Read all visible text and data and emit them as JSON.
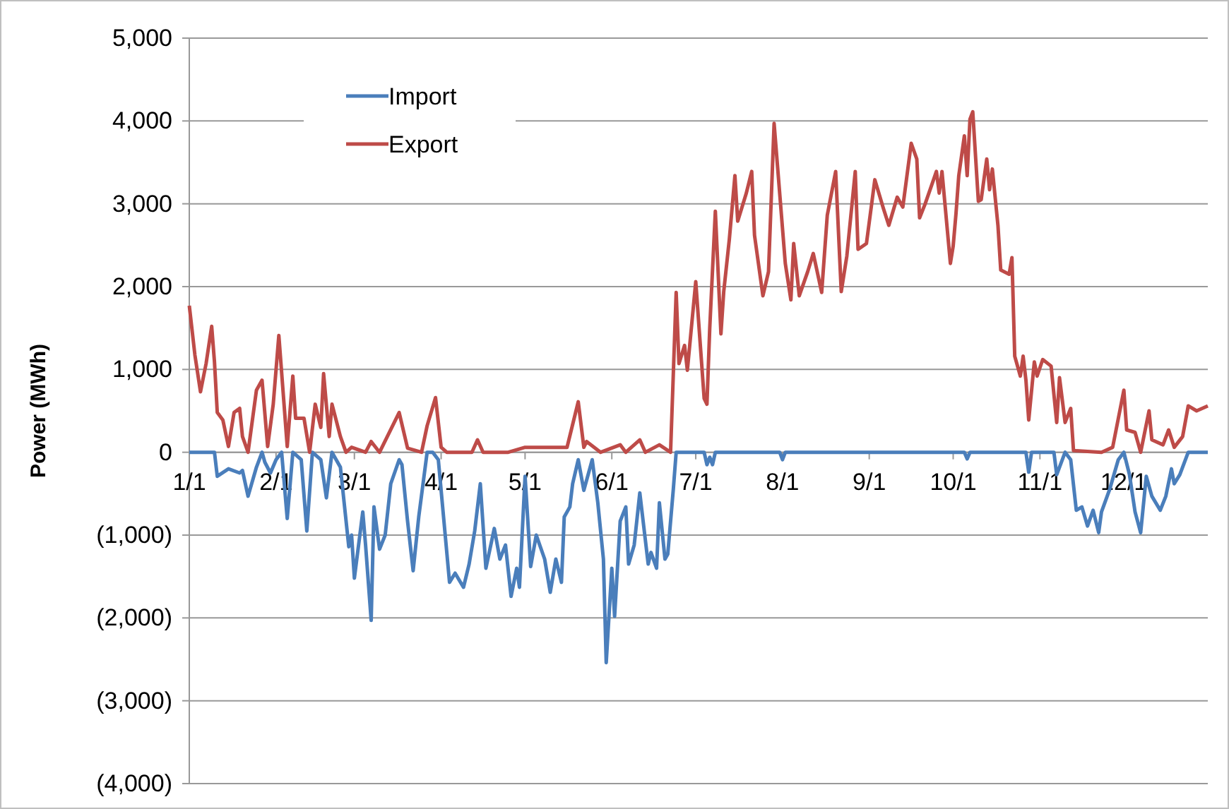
{
  "chart_data": {
    "type": "line",
    "ylabel": "Power (MWh)",
    "ylim": [
      -4000,
      5000
    ],
    "yticks": [
      {
        "value": -4000,
        "label": "(4,000)"
      },
      {
        "value": -3000,
        "label": "(3,000)"
      },
      {
        "value": -2000,
        "label": "(2,000)"
      },
      {
        "value": -1000,
        "label": "(1,000)"
      },
      0,
      {
        "value": 1000,
        "label": "1,000"
      },
      {
        "value": 2000,
        "label": "2,000"
      },
      {
        "value": 3000,
        "label": "3,000"
      },
      {
        "value": 4000,
        "label": "4,000"
      },
      {
        "value": 5000,
        "label": "5,000"
      }
    ],
    "xlim": [
      "--01-01",
      "--12-31"
    ],
    "xticks": [
      {
        "value": "--01-01",
        "label": "1/1"
      },
      {
        "value": "--02-01",
        "label": "2/1"
      },
      {
        "value": "--03-01",
        "label": "3/1"
      },
      {
        "value": "--04-01",
        "label": "4/1"
      },
      {
        "value": "--05-01",
        "label": "5/1"
      },
      {
        "value": "--06-01",
        "label": "6/1"
      },
      {
        "value": "--07-01",
        "label": "7/1"
      },
      {
        "value": "--08-01",
        "label": "8/1"
      },
      {
        "value": "--09-01",
        "label": "9/1"
      },
      {
        "value": "--10-01",
        "label": "10/1"
      },
      {
        "value": "--11-01",
        "label": "11/1"
      },
      {
        "value": "--12-01",
        "label": "12/1"
      }
    ],
    "grid": "y",
    "legend": "top left",
    "marker": "none",
    "line_style": "solid",
    "series": [
      {
        "name": "Import",
        "color": "#4a7ebb",
        "x": [
          "--01-01",
          "--01-10",
          "--01-11",
          "--01-15",
          "--01-19",
          "--01-20",
          "--01-22",
          "--01-25",
          "--01-27",
          "--01-28",
          "--01-30",
          "--02-01",
          "--02-03",
          "--02-05",
          "--02-07",
          "--02-10",
          "--02-12",
          "--02-14",
          "--02-17",
          "--02-19",
          "--02-21",
          "--02-24",
          "--02-27",
          "--02-28",
          "--03-01",
          "--03-04",
          "--03-05",
          "--03-07",
          "--03-08",
          "--03-10",
          "--03-12",
          "--03-14",
          "--03-17",
          "--03-18",
          "--03-20",
          "--03-22",
          "--03-24",
          "--03-27",
          "--03-29",
          "--03-31",
          "--04-02",
          "--04-04",
          "--04-06",
          "--04-09",
          "--04-11",
          "--04-13",
          "--04-15",
          "--04-17",
          "--04-20",
          "--04-22",
          "--04-24",
          "--04-26",
          "--04-28",
          "--04-29",
          "--05-01",
          "--05-03",
          "--05-05",
          "--05-08",
          "--05-10",
          "--05-12",
          "--05-14",
          "--05-15",
          "--05-17",
          "--05-18",
          "--05-20",
          "--05-22",
          "--05-25",
          "--05-27",
          "--05-29",
          "--05-30",
          "--06-01",
          "--06-02",
          "--06-04",
          "--06-06",
          "--06-07",
          "--06-09",
          "--06-11",
          "--06-14",
          "--06-15",
          "--06-17",
          "--06-18",
          "--06-20",
          "--06-21",
          "--06-23",
          "--06-24",
          "--07-04",
          "--07-05",
          "--07-06",
          "--07-07",
          "--07-08",
          "--07-31",
          "--08-01",
          "--08-02",
          "--10-05",
          "--10-06",
          "--10-07",
          "--10-27",
          "--10-28",
          "--10-29",
          "--11-06",
          "--11-07",
          "--11-10",
          "--11-12",
          "--11-14",
          "--11-16",
          "--11-18",
          "--11-20",
          "--11-22",
          "--11-23",
          "--11-26",
          "--11-29",
          "--12-01",
          "--12-03",
          "--12-05",
          "--12-07",
          "--12-09",
          "--12-11",
          "--12-14",
          "--12-16",
          "--12-18",
          "--12-19",
          "--12-21",
          "--12-24",
          "--12-31"
        ],
        "values": [
          0,
          0,
          -290,
          -200,
          -250,
          -220,
          -530,
          -180,
          0,
          -120,
          -250,
          -90,
          0,
          -800,
          0,
          -90,
          -950,
          0,
          -90,
          -550,
          0,
          -180,
          -1140,
          -1000,
          -1520,
          -720,
          -1120,
          -2030,
          -660,
          -1170,
          -1000,
          -380,
          -90,
          -150,
          -830,
          -1430,
          -780,
          0,
          0,
          -90,
          -830,
          -1570,
          -1460,
          -1630,
          -1350,
          -950,
          -380,
          -1400,
          -920,
          -1290,
          -1120,
          -1740,
          -1400,
          -1630,
          -290,
          -1380,
          -1000,
          -1290,
          -1690,
          -1290,
          -1570,
          -780,
          -660,
          -380,
          -90,
          -460,
          -90,
          -610,
          -1290,
          -2540,
          -1400,
          -1980,
          -830,
          -660,
          -1350,
          -1120,
          -490,
          -1350,
          -1210,
          -1400,
          -610,
          -1290,
          -1230,
          -440,
          0,
          0,
          -150,
          -60,
          -150,
          0,
          0,
          -90,
          0,
          0,
          -80,
          0,
          0,
          -240,
          0,
          0,
          -270,
          0,
          -90,
          -700,
          -660,
          -890,
          -700,
          -970,
          -720,
          -440,
          -90,
          0,
          -270,
          -720,
          -970,
          -290,
          -530,
          -700,
          -530,
          -200,
          -380,
          -270,
          0,
          0
        ]
      },
      {
        "name": "Export",
        "color": "#be4b48",
        "x": [
          "--01-01",
          "--01-03",
          "--01-05",
          "--01-07",
          "--01-09",
          "--01-10",
          "--01-11",
          "--01-13",
          "--01-15",
          "--01-17",
          "--01-19",
          "--01-20",
          "--01-22",
          "--01-25",
          "--01-27",
          "--01-29",
          "--01-31",
          "--02-02",
          "--02-05",
          "--02-07",
          "--02-08",
          "--02-11",
          "--02-13",
          "--02-15",
          "--02-17",
          "--02-18",
          "--02-20",
          "--02-21",
          "--02-24",
          "--02-26",
          "--02-28",
          "--03-05",
          "--03-07",
          "--03-10",
          "--03-17",
          "--03-20",
          "--03-25",
          "--03-27",
          "--03-30",
          "--04-01",
          "--04-03",
          "--04-12",
          "--04-14",
          "--04-16",
          "--04-25",
          "--05-01",
          "--05-16",
          "--05-20",
          "--05-22",
          "--05-23",
          "--05-28",
          "--06-04",
          "--06-06",
          "--06-11",
          "--06-13",
          "--06-18",
          "--06-22",
          "--06-24",
          "--06-25",
          "--06-27",
          "--06-28",
          "--07-01",
          "--07-04",
          "--07-05",
          "--07-06",
          "--07-08",
          "--07-10",
          "--07-11",
          "--07-13",
          "--07-15",
          "--07-16",
          "--07-19",
          "--07-21",
          "--07-22",
          "--07-25",
          "--07-27",
          "--07-29",
          "--08-02",
          "--08-04",
          "--08-05",
          "--08-07",
          "--08-10",
          "--08-12",
          "--08-15",
          "--08-17",
          "--08-20",
          "--08-22",
          "--08-24",
          "--08-27",
          "--08-28",
          "--08-31",
          "--09-03",
          "--09-06",
          "--09-08",
          "--09-11",
          "--09-13",
          "--09-16",
          "--09-18",
          "--09-19",
          "--09-21",
          "--09-25",
          "--09-26",
          "--09-27",
          "--09-30",
          "--10-01",
          "--10-02",
          "--10-03",
          "--10-05",
          "--10-06",
          "--10-07",
          "--10-08",
          "--10-10",
          "--10-11",
          "--10-13",
          "--10-14",
          "--10-15",
          "--10-17",
          "--10-18",
          "--10-21",
          "--10-22",
          "--10-23",
          "--10-25",
          "--10-26",
          "--10-27",
          "--10-28",
          "--10-30",
          "--10-31",
          "--11-02",
          "--11-05",
          "--11-07",
          "--11-08",
          "--11-10",
          "--11-12",
          "--11-13",
          "--11-23",
          "--11-27",
          "--12-01",
          "--12-02",
          "--12-05",
          "--12-07",
          "--12-10",
          "--12-11",
          "--12-15",
          "--12-17",
          "--12-19",
          "--12-22",
          "--12-24",
          "--12-27",
          "--12-31"
        ],
        "values": [
          1770,
          1175,
          730,
          1070,
          1520,
          1090,
          480,
          390,
          70,
          480,
          530,
          190,
          0,
          750,
          870,
          70,
          580,
          1410,
          70,
          920,
          410,
          410,
          0,
          580,
          300,
          950,
          190,
          580,
          190,
          0,
          60,
          0,
          130,
          0,
          480,
          50,
          0,
          320,
          660,
          60,
          0,
          0,
          150,
          0,
          0,
          60,
          60,
          610,
          60,
          130,
          0,
          90,
          0,
          150,
          0,
          90,
          0,
          1930,
          1070,
          1290,
          990,
          2060,
          650,
          580,
          1500,
          2910,
          1430,
          1940,
          2570,
          3340,
          2790,
          3120,
          3390,
          2620,
          1890,
          2180,
          3970,
          2280,
          1840,
          2520,
          1890,
          2180,
          2400,
          1930,
          2860,
          3390,
          1940,
          2370,
          3390,
          2450,
          2520,
          3290,
          2950,
          2740,
          3080,
          2960,
          3730,
          3540,
          2830,
          3000,
          3390,
          3130,
          3390,
          2280,
          2490,
          2880,
          3340,
          3820,
          3340,
          4020,
          4110,
          3030,
          3050,
          3540,
          3170,
          3420,
          2740,
          2200,
          2150,
          2350,
          1160,
          920,
          1160,
          870,
          390,
          1090,
          920,
          1120,
          1040,
          360,
          900,
          360,
          530,
          20,
          0,
          60,
          750,
          270,
          240,
          0,
          500,
          150,
          90,
          270,
          60,
          190,
          560,
          500,
          560
        ]
      }
    ]
  }
}
